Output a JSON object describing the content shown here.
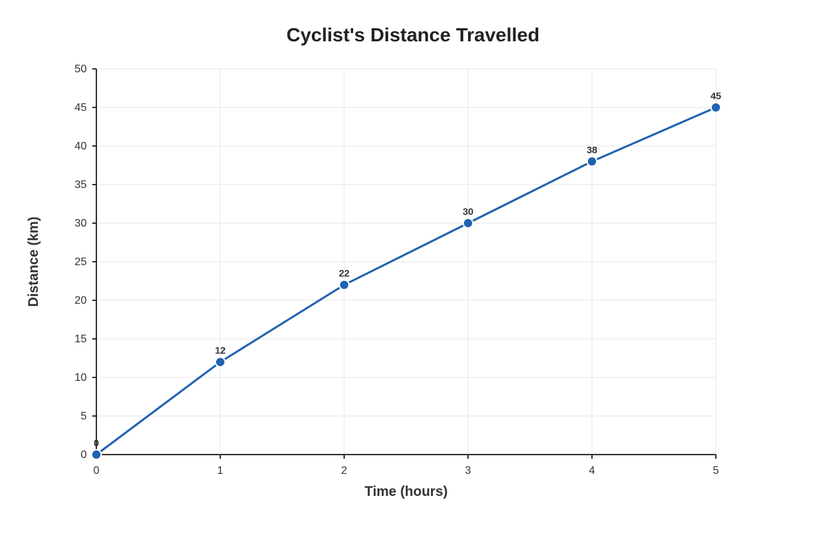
{
  "chart_data": {
    "type": "line",
    "title": "Cyclist's Distance Travelled",
    "xlabel": "Time (hours)",
    "ylabel": "Distance (km)",
    "x": [
      0,
      1,
      2,
      3,
      4,
      5
    ],
    "series": [
      {
        "values": [
          0,
          12,
          22,
          30,
          38,
          45
        ],
        "color": "#1f63b0"
      }
    ],
    "xlim": [
      0,
      5
    ],
    "ylim": [
      0,
      50
    ],
    "xticks": [
      0,
      1,
      2,
      3,
      4,
      5
    ],
    "yticks": [
      0,
      5,
      10,
      15,
      20,
      25,
      30,
      35,
      40,
      45,
      50
    ],
    "grid": true,
    "data_labels": true,
    "legend": "none"
  }
}
